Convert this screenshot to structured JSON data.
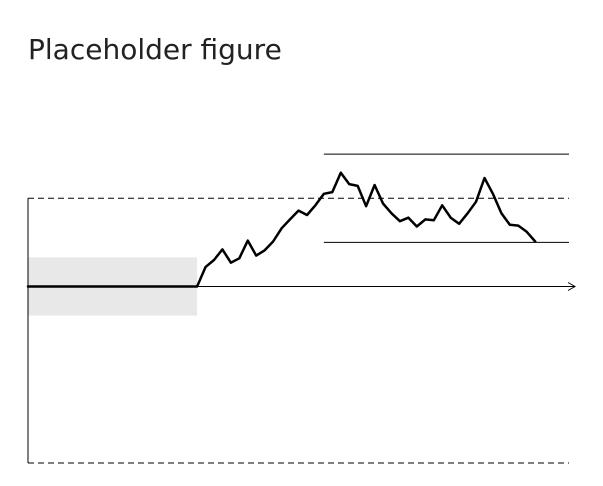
{
  "chart_data": {
    "type": "line",
    "title": "Placeholder figure",
    "xlabel": "",
    "ylabel": "",
    "xlim": [
      0,
      64
    ],
    "ylim": [
      -1,
      1
    ],
    "grid": false,
    "reference_lines": {
      "dashed_upper": 0.5,
      "dashed_lower": -1,
      "solid_upper": 0.75,
      "solid_lower": 0.25
    },
    "shaded_region": {
      "x": [
        0,
        20
      ],
      "y": [
        -0.165,
        0.165
      ],
      "color": "#e8e8e8"
    },
    "series": [
      {
        "color": "#000000",
        "values": [
          [
            0,
            0
          ],
          [
            20,
            0
          ],
          [
            21,
            0.11
          ],
          [
            22,
            0.15
          ],
          [
            23,
            0.21
          ],
          [
            24,
            0.135
          ],
          [
            25,
            0.16
          ],
          [
            26,
            0.26
          ],
          [
            27,
            0.175
          ],
          [
            28,
            0.205
          ],
          [
            29,
            0.255
          ],
          [
            30,
            0.33
          ],
          [
            31,
            0.38
          ],
          [
            32,
            0.43
          ],
          [
            33,
            0.405
          ],
          [
            34,
            0.46
          ],
          [
            35,
            0.525
          ],
          [
            36,
            0.535
          ],
          [
            37,
            0.645
          ],
          [
            38,
            0.58
          ],
          [
            39,
            0.57
          ],
          [
            40,
            0.455
          ],
          [
            41,
            0.575
          ],
          [
            42,
            0.47
          ],
          [
            43,
            0.415
          ],
          [
            44,
            0.37
          ],
          [
            45,
            0.39
          ],
          [
            46,
            0.34
          ],
          [
            47,
            0.38
          ],
          [
            48,
            0.375
          ],
          [
            49,
            0.46
          ],
          [
            50,
            0.39
          ],
          [
            51,
            0.355
          ],
          [
            52,
            0.415
          ],
          [
            53,
            0.48
          ],
          [
            54,
            0.615
          ],
          [
            55,
            0.525
          ],
          [
            56,
            0.415
          ],
          [
            57,
            0.35
          ],
          [
            58,
            0.345
          ],
          [
            59,
            0.31
          ],
          [
            60,
            0.255
          ]
        ]
      }
    ]
  }
}
